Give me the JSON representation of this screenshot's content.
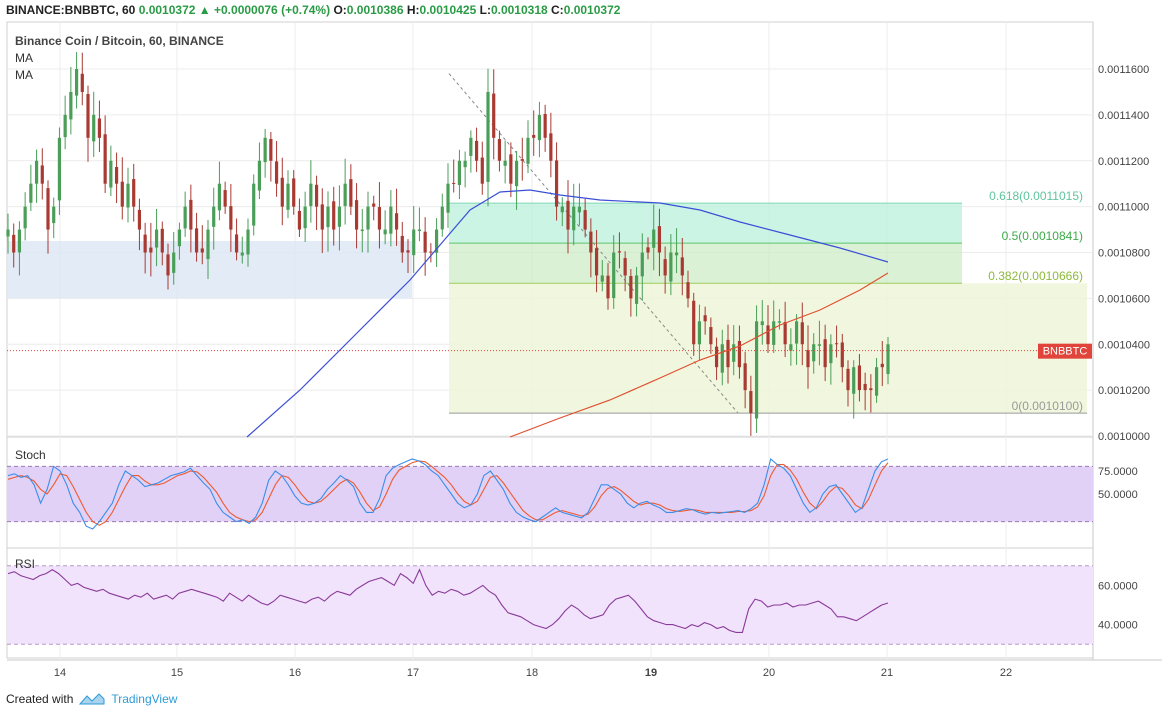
{
  "header": {
    "symbol": "BINANCE:BNBBTC, 60",
    "last": "0.0010372",
    "arrow": "▲",
    "change": "+0.0000076 (+0.74%)",
    "o_label": "O:",
    "o_value": "0.0010386",
    "h_label": "H:",
    "h_value": "0.0010425",
    "l_label": "L:",
    "l_value": "0.0010318",
    "c_label": "C:",
    "c_value": "0.0010372"
  },
  "legend": {
    "title": "Binance Coin / Bitcoin, 60, BINANCE",
    "ma1": "MA",
    "ma2": "MA"
  },
  "footer": {
    "created_with": "Created with",
    "brand": "TradingView"
  },
  "colors": {
    "up_candle": "#4a9e58",
    "down_candle": "#a83a32",
    "ma_blue": "#3b4fd6",
    "ma_red": "#e0502f",
    "stoch_k": "#3a8ee8",
    "stoch_d": "#ee5b30",
    "rsi_line": "#8a3a9a",
    "band_fill": "#e1d1f7",
    "rsi_band_fill": "#f1e3fb",
    "price_tag": "#e0443a",
    "fib_upper_fill": "#b9f0dc",
    "fib_lower_fill": "#eef6d8",
    "support_zone": "#dde7f5"
  },
  "chart_data": [
    {
      "type": "candlestick",
      "title": "Binance Coin / Bitcoin, 60, BINANCE",
      "x_tick_labels": [
        "14",
        "15",
        "16",
        "17",
        "18",
        "19",
        "20",
        "21",
        "22"
      ],
      "y_tick_labels": [
        "0.0011600",
        "0.0011400",
        "0.0011200",
        "0.0011000",
        "0.0010800",
        "0.0010600",
        "0.0010400",
        "0.0010200",
        "0.0010000"
      ],
      "ylim": [
        0.001,
        0.00117
      ],
      "last_price_label": "BNBBTC",
      "last_price": 0.0010372,
      "fibonacci": [
        {
          "label": "0.618(0.0011015)",
          "level": 0.0011015
        },
        {
          "label": "0.5(0.0010841)",
          "level": 0.0010841
        },
        {
          "label": "0.382(0.0010666)",
          "level": 0.0010666
        },
        {
          "label": "0(0.0010100)",
          "level": 0.00101
        }
      ],
      "support_zone": [
        0.00106,
        0.001085
      ],
      "close_series": [
        0.00109,
        0.00108,
        0.00109,
        0.0011,
        0.00111,
        0.00112,
        0.00111,
        0.00109,
        0.0011,
        0.00113,
        0.00114,
        0.00115,
        0.00116,
        0.00115,
        0.00113,
        0.00114,
        0.00113,
        0.00111,
        0.00112,
        0.00111,
        0.0011,
        0.00111,
        0.0011,
        0.00109,
        0.00108,
        0.00108,
        0.00109,
        0.00108,
        0.00107,
        0.00108,
        0.00109,
        0.0011,
        0.00109,
        0.00108,
        0.00108,
        0.00109,
        0.0011,
        0.00111,
        0.0011,
        0.00109,
        0.00108,
        0.00108,
        0.00109,
        0.00111,
        0.00112,
        0.00113,
        0.00112,
        0.00111,
        0.0011,
        0.00111,
        0.0011,
        0.00109,
        0.0011,
        0.00111,
        0.0011,
        0.00109,
        0.0011,
        0.00109,
        0.0011,
        0.00111,
        0.0011,
        0.00109,
        0.00109,
        0.0011,
        0.0011,
        0.00109,
        0.00109,
        0.0011,
        0.00109,
        0.00108,
        0.00108,
        0.00109,
        0.00109,
        0.00108,
        0.00108,
        0.00109,
        0.0011,
        0.00111,
        0.00111,
        0.00112,
        0.00112,
        0.00113,
        0.00112,
        0.00111,
        0.00115,
        0.00113,
        0.00112,
        0.00112,
        0.00111,
        0.00112,
        0.00112,
        0.00113,
        0.00113,
        0.00114,
        0.00113,
        0.00112,
        0.0011,
        0.0011,
        0.00109,
        0.0011,
        0.0011,
        0.00109,
        0.00108,
        0.00107,
        0.00107,
        0.00106,
        0.00108,
        0.00108,
        0.00107,
        0.00106,
        0.00107,
        0.00108,
        0.00108,
        0.00109,
        0.00108,
        0.00107,
        0.00108,
        0.00108,
        0.00107,
        0.00106,
        0.00104,
        0.00105,
        0.00105,
        0.00104,
        0.00103,
        0.00104,
        0.00103,
        0.00104,
        0.00103,
        0.00102,
        0.00101,
        0.00105,
        0.00105,
        0.00104,
        0.00105,
        0.00105,
        0.00104,
        0.00104,
        0.00105,
        0.00104,
        0.00103,
        0.00104,
        0.00104,
        0.00103,
        0.00104,
        0.00104,
        0.00103,
        0.00102,
        0.00103,
        0.00102,
        0.00102,
        0.00102,
        0.00103,
        0.00103,
        0.00104
      ],
      "series": [
        {
          "name": "MA",
          "color": "blue"
        },
        {
          "name": "MA",
          "color": "red"
        }
      ]
    },
    {
      "type": "line",
      "title": "Stoch",
      "y_tick_labels": [
        "75.0000",
        "50.0000"
      ],
      "band": [
        20,
        80
      ],
      "ylim": [
        0,
        100
      ],
      "series": [
        {
          "name": "%K",
          "values": [
            70,
            72,
            68,
            70,
            60,
            40,
            55,
            80,
            75,
            60,
            40,
            30,
            15,
            12,
            20,
            30,
            40,
            60,
            75,
            70,
            65,
            58,
            60,
            62,
            66,
            70,
            72,
            74,
            78,
            70,
            62,
            55,
            40,
            30,
            25,
            20,
            22,
            18,
            25,
            40,
            65,
            75,
            70,
            60,
            48,
            40,
            38,
            40,
            45,
            55,
            62,
            70,
            65,
            58,
            40,
            30,
            30,
            45,
            70,
            78,
            82,
            85,
            88,
            86,
            82,
            75,
            70,
            60,
            50,
            40,
            35,
            38,
            50,
            70,
            75,
            65,
            55,
            40,
            30,
            25,
            22,
            20,
            25,
            30,
            35,
            30,
            28,
            26,
            24,
            30,
            45,
            60,
            60,
            55,
            50,
            40,
            35,
            40,
            42,
            38,
            35,
            30,
            30,
            32,
            34,
            33,
            30,
            28,
            30,
            29,
            30,
            31,
            32,
            30,
            34,
            40,
            60,
            88,
            82,
            78,
            70,
            55,
            40,
            30,
            35,
            50,
            58,
            60,
            50,
            40,
            30,
            35,
            55,
            75,
            85,
            88
          ]
        },
        {
          "name": "%D",
          "values": [
            66,
            68,
            70,
            68,
            64,
            55,
            50,
            60,
            72,
            70,
            58,
            44,
            30,
            20,
            16,
            20,
            30,
            44,
            58,
            70,
            70,
            64,
            60,
            60,
            62,
            66,
            70,
            72,
            75,
            74,
            68,
            60,
            52,
            40,
            30,
            25,
            22,
            20,
            22,
            30,
            45,
            60,
            70,
            68,
            60,
            50,
            42,
            40,
            42,
            48,
            55,
            62,
            66,
            62,
            52,
            40,
            32,
            36,
            50,
            66,
            76,
            80,
            84,
            86,
            85,
            80,
            74,
            68,
            60,
            50,
            42,
            38,
            42,
            55,
            68,
            70,
            62,
            52,
            42,
            32,
            26,
            22,
            22,
            26,
            30,
            32,
            30,
            28,
            26,
            28,
            36,
            48,
            56,
            58,
            54,
            48,
            42,
            38,
            40,
            40,
            38,
            34,
            32,
            31,
            32,
            33,
            32,
            30,
            30,
            30,
            30,
            30,
            31,
            31,
            32,
            36,
            48,
            70,
            82,
            82,
            76,
            66,
            52,
            40,
            34,
            42,
            52,
            58,
            56,
            48,
            38,
            34,
            44,
            60,
            75,
            84
          ]
        }
      ]
    },
    {
      "type": "line",
      "title": "RSI",
      "y_tick_labels": [
        "60.0000",
        "40.0000"
      ],
      "band": [
        30,
        70
      ],
      "ylim": [
        25,
        75
      ],
      "series": [
        {
          "name": "RSI",
          "values": [
            66,
            67,
            65,
            64,
            63,
            65,
            66,
            68,
            66,
            63,
            60,
            61,
            59,
            58,
            57,
            58,
            56,
            55,
            54,
            53,
            55,
            54,
            56,
            53,
            54,
            55,
            53,
            56,
            57,
            58,
            57,
            56,
            55,
            54,
            52,
            56,
            54,
            52,
            55,
            53,
            51,
            50,
            52,
            55,
            54,
            53,
            52,
            51,
            53,
            54,
            52,
            55,
            57,
            56,
            55,
            58,
            60,
            62,
            63,
            64,
            62,
            60,
            66,
            64,
            61,
            68,
            60,
            55,
            57,
            56,
            58,
            57,
            55,
            56,
            58,
            60,
            57,
            55,
            50,
            46,
            45,
            44,
            42,
            40,
            39,
            38,
            40,
            43,
            47,
            50,
            48,
            45,
            43,
            44,
            45,
            50,
            53,
            54,
            55,
            52,
            48,
            44,
            42,
            41,
            40,
            40,
            39,
            38,
            40,
            39,
            41,
            40,
            38,
            39,
            37,
            36,
            36,
            48,
            53,
            52,
            49,
            50,
            50,
            51,
            49,
            50,
            50,
            51,
            52,
            50,
            48,
            44,
            44,
            43,
            42,
            44,
            46,
            48,
            50,
            51
          ]
        }
      ]
    }
  ]
}
